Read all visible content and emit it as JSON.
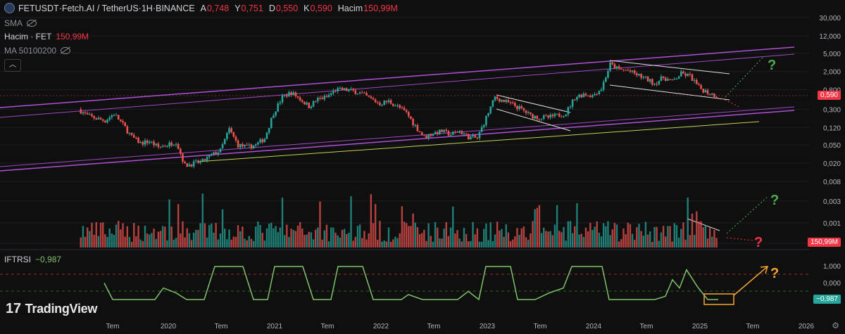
{
  "header": {
    "symbol": "FETUSDT",
    "separator1": " · ",
    "name": "Fetch.AI / TetherUS",
    "separator2": " · ",
    "interval": "1H",
    "separator3": " · ",
    "exchange": "BINANCE",
    "open_label": "A",
    "open_value": "0,748",
    "high_label": "Y",
    "high_value": "0,751",
    "low_label": "D",
    "low_value": "0,550",
    "close_label": "K",
    "close_value": "0,590",
    "volume_label": "Hacim",
    "volume_value": "150,99M"
  },
  "indicators": {
    "sma_label": "SMA",
    "volume_name": "Hacim · FET",
    "volume_value": "150,99M",
    "ma_label": "MA 50100200",
    "iftrsi_label": "IFTRSI",
    "iftrsi_value": "−0,987"
  },
  "branding": {
    "logo_text": "TradingView",
    "logo_mark": "17"
  },
  "colors": {
    "background": "#0f0f0f",
    "up": "#26a69a",
    "down": "#ef5350",
    "channel": "#b04fd8",
    "support": "#c7d152",
    "rsi_line": "#7fc36a",
    "question_green": "#4caf50",
    "question_red": "#f23645",
    "question_orange": "#f7a531",
    "box_orange": "#f7a531"
  },
  "chart_data": {
    "type": "candlestick",
    "scale": "log",
    "y_ticks": [
      "30,000",
      "12,000",
      "5,000",
      "2,000",
      "0,800",
      "0,300",
      "0,120",
      "0,050",
      "0,020",
      "0,008",
      "0,003",
      "0,001",
      "0,000"
    ],
    "y_tick_values": [
      30,
      12,
      5,
      2,
      0.8,
      0.3,
      0.12,
      0.05,
      0.02,
      0.008,
      0.003,
      0.001,
      0.0004
    ],
    "x_ticks": [
      "Tem",
      "2020",
      "Tem",
      "2021",
      "Tem",
      "2022",
      "Tem",
      "2023",
      "Tem",
      "2024",
      "Tem",
      "2025",
      "Tem",
      "2026"
    ],
    "last_price": "0,590",
    "last_volume": "150,99M",
    "iftrsi_ticks": [
      "1,000",
      "0,000",
      "−1,000"
    ],
    "iftrsi_last": "−0,987",
    "annotations": [
      "?",
      "?",
      "?",
      "?"
    ],
    "price_path": [
      [
        "2019-03",
        0.3
      ],
      [
        "2019-04",
        0.22
      ],
      [
        "2019-05",
        0.19
      ],
      [
        "2019-06",
        0.17
      ],
      [
        "2019-07",
        0.24
      ],
      [
        "2019-08",
        0.14
      ],
      [
        "2019-09",
        0.075
      ],
      [
        "2019-10",
        0.055
      ],
      [
        "2019-11",
        0.06
      ],
      [
        "2019-12",
        0.045
      ],
      [
        "2020-01",
        0.05
      ],
      [
        "2020-02",
        0.06
      ],
      [
        "2020-03",
        0.018
      ],
      [
        "2020-04",
        0.02
      ],
      [
        "2020-05",
        0.022
      ],
      [
        "2020-06",
        0.03
      ],
      [
        "2020-07",
        0.038
      ],
      [
        "2020-08",
        0.11
      ],
      [
        "2020-09",
        0.05
      ],
      [
        "2020-10",
        0.045
      ],
      [
        "2020-11",
        0.05
      ],
      [
        "2020-12",
        0.07
      ],
      [
        "2021-01",
        0.25
      ],
      [
        "2021-02",
        0.55
      ],
      [
        "2021-03",
        0.7
      ],
      [
        "2021-04",
        0.5
      ],
      [
        "2021-05",
        0.35
      ],
      [
        "2021-06",
        0.5
      ],
      [
        "2021-07",
        0.55
      ],
      [
        "2021-08",
        0.8
      ],
      [
        "2021-09",
        0.8
      ],
      [
        "2021-10",
        0.75
      ],
      [
        "2021-11",
        0.65
      ],
      [
        "2021-12",
        0.5
      ],
      [
        "2022-01",
        0.4
      ],
      [
        "2022-02",
        0.45
      ],
      [
        "2022-03",
        0.35
      ],
      [
        "2022-04",
        0.25
      ],
      [
        "2022-05",
        0.13
      ],
      [
        "2022-06",
        0.075
      ],
      [
        "2022-07",
        0.09
      ],
      [
        "2022-08",
        0.1
      ],
      [
        "2022-09",
        0.085
      ],
      [
        "2022-10",
        0.1
      ],
      [
        "2022-11",
        0.075
      ],
      [
        "2022-12",
        0.07
      ],
      [
        "2023-01",
        0.2
      ],
      [
        "2023-02",
        0.55
      ],
      [
        "2023-03",
        0.45
      ],
      [
        "2023-04",
        0.38
      ],
      [
        "2023-05",
        0.3
      ],
      [
        "2023-06",
        0.22
      ],
      [
        "2023-07",
        0.2
      ],
      [
        "2023-08",
        0.2
      ],
      [
        "2023-09",
        0.22
      ],
      [
        "2023-10",
        0.25
      ],
      [
        "2023-11",
        0.55
      ],
      [
        "2023-12",
        0.65
      ],
      [
        "2024-01",
        0.6
      ],
      [
        "2024-02",
        0.85
      ],
      [
        "2024-03",
        2.9
      ],
      [
        "2024-04",
        2.2
      ],
      [
        "2024-05",
        2.1
      ],
      [
        "2024-06",
        1.7
      ],
      [
        "2024-07",
        1.4
      ],
      [
        "2024-08",
        1.1
      ],
      [
        "2024-09",
        1.5
      ],
      [
        "2024-10",
        1.2
      ],
      [
        "2024-11",
        1.8
      ],
      [
        "2024-12",
        1.6
      ],
      [
        "2025-01",
        0.9
      ],
      [
        "2025-02",
        0.7
      ],
      [
        "2025-03",
        0.59
      ]
    ]
  }
}
